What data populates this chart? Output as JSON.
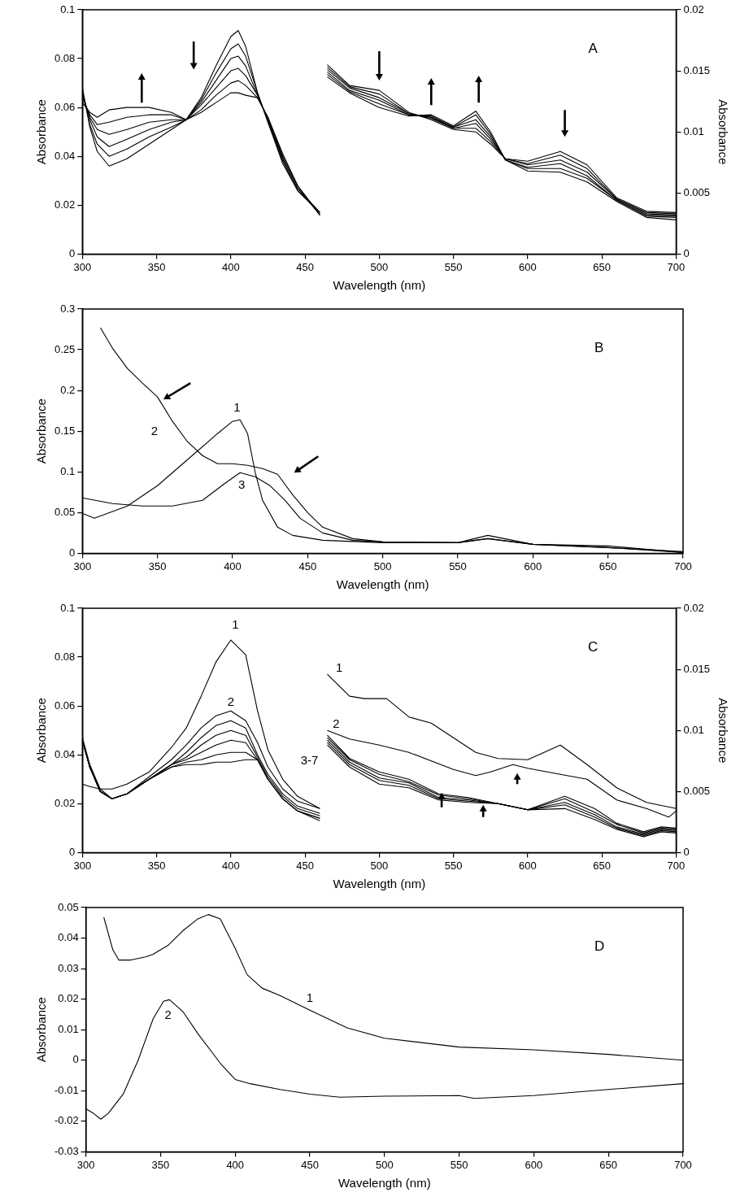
{
  "chart_data": [
    {
      "type": "line",
      "xlabel": "Wavelength (nm)",
      "ylabel": "Absorbance",
      "y2label": "Absorbance",
      "xlim": [
        300,
        700
      ],
      "xticks": [
        300,
        350,
        400,
        450,
        500,
        550,
        600,
        650,
        700
      ],
      "ylim": [
        0,
        0.1
      ],
      "yticks": [
        0,
        0.02,
        0.04,
        0.06,
        0.08,
        0.1
      ],
      "y2lim": [
        0,
        0.02
      ],
      "y2ticks": [
        0,
        0.005,
        0.01,
        0.015,
        0.02
      ],
      "legend": false,
      "annotations": [
        "A"
      ],
      "series": [
        {
          "color": "#000000",
          "x": [
            300,
            305,
            310,
            318,
            330,
            345,
            360,
            370,
            380,
            390,
            400,
            405,
            410,
            418,
            425,
            435,
            445,
            460
          ],
          "values": [
            0.068,
            0.052,
            0.042,
            0.036,
            0.039,
            0.045,
            0.051,
            0.055,
            0.064,
            0.077,
            0.089,
            0.0915,
            0.085,
            0.066,
            0.054,
            0.037,
            0.026,
            0.017
          ]
        },
        {
          "color": "#000000",
          "x": [
            300,
            305,
            310,
            318,
            330,
            345,
            360,
            370,
            380,
            390,
            400,
            405,
            410,
            418,
            425,
            435,
            445,
            460
          ],
          "values": [
            0.067,
            0.053,
            0.045,
            0.04,
            0.043,
            0.048,
            0.052,
            0.055,
            0.063,
            0.074,
            0.084,
            0.086,
            0.081,
            0.066,
            0.054,
            0.038,
            0.026,
            0.017
          ]
        },
        {
          "color": "#000000",
          "x": [
            300,
            305,
            310,
            318,
            330,
            345,
            360,
            370,
            380,
            390,
            400,
            405,
            410,
            418,
            425,
            435,
            445,
            460
          ],
          "values": [
            0.066,
            0.055,
            0.048,
            0.044,
            0.047,
            0.051,
            0.054,
            0.055,
            0.062,
            0.071,
            0.08,
            0.081,
            0.077,
            0.065,
            0.055,
            0.039,
            0.027,
            0.017
          ]
        },
        {
          "color": "#000000",
          "x": [
            300,
            305,
            310,
            318,
            330,
            345,
            360,
            370,
            380,
            390,
            400,
            405,
            410,
            418,
            425,
            435,
            445,
            460
          ],
          "values": [
            0.065,
            0.056,
            0.051,
            0.049,
            0.051,
            0.054,
            0.055,
            0.055,
            0.061,
            0.068,
            0.075,
            0.076,
            0.073,
            0.065,
            0.055,
            0.039,
            0.027,
            0.016
          ]
        },
        {
          "color": "#000000",
          "x": [
            300,
            305,
            310,
            318,
            330,
            345,
            360,
            370,
            380,
            390,
            400,
            405,
            410,
            418,
            425,
            435,
            445,
            460
          ],
          "values": [
            0.064,
            0.057,
            0.053,
            0.054,
            0.056,
            0.057,
            0.057,
            0.055,
            0.059,
            0.065,
            0.07,
            0.071,
            0.069,
            0.064,
            0.056,
            0.04,
            0.028,
            0.016
          ]
        },
        {
          "color": "#000000",
          "x": [
            300,
            305,
            310,
            318,
            330,
            345,
            360,
            370,
            380,
            390,
            400,
            405,
            410,
            418,
            425,
            435,
            445,
            460
          ],
          "values": [
            0.062,
            0.058,
            0.056,
            0.059,
            0.06,
            0.06,
            0.058,
            0.055,
            0.058,
            0.062,
            0.066,
            0.066,
            0.065,
            0.064,
            0.056,
            0.041,
            0.028,
            0.016
          ]
        },
        {
          "color": "#000000",
          "axis": "y2",
          "x": [
            465,
            480,
            500,
            520,
            535,
            550,
            565,
            575,
            585,
            600,
            622,
            640,
            660,
            680,
            700
          ],
          "values": [
            0.0155,
            0.0138,
            0.0134,
            0.0116,
            0.011,
            0.0102,
            0.01,
            0.009,
            0.0078,
            0.0076,
            0.0084,
            0.0073,
            0.0046,
            0.0035,
            0.0034
          ]
        },
        {
          "color": "#000000",
          "axis": "y2",
          "x": [
            465,
            480,
            500,
            520,
            535,
            550,
            565,
            575,
            585,
            600,
            622,
            640,
            660,
            680,
            700
          ],
          "values": [
            0.0153,
            0.0137,
            0.0131,
            0.0115,
            0.0111,
            0.0103,
            0.0103,
            0.0092,
            0.0078,
            0.0074,
            0.0081,
            0.007,
            0.0045,
            0.0034,
            0.0033
          ]
        },
        {
          "color": "#000000",
          "axis": "y2",
          "x": [
            465,
            480,
            500,
            520,
            535,
            550,
            565,
            575,
            585,
            600,
            622,
            640,
            660,
            680,
            700
          ],
          "values": [
            0.0151,
            0.0136,
            0.0128,
            0.0115,
            0.0112,
            0.0103,
            0.0107,
            0.0094,
            0.0078,
            0.0073,
            0.0077,
            0.0067,
            0.0045,
            0.0033,
            0.0032
          ]
        },
        {
          "color": "#000000",
          "axis": "y2",
          "x": [
            465,
            480,
            500,
            520,
            535,
            550,
            565,
            575,
            585,
            600,
            622,
            640,
            660,
            680,
            700
          ],
          "values": [
            0.0149,
            0.0134,
            0.0126,
            0.0114,
            0.0112,
            0.0104,
            0.011,
            0.0096,
            0.0077,
            0.0071,
            0.0074,
            0.0064,
            0.0044,
            0.0032,
            0.0031
          ]
        },
        {
          "color": "#000000",
          "axis": "y2",
          "x": [
            465,
            480,
            500,
            520,
            535,
            550,
            565,
            575,
            585,
            600,
            622,
            640,
            660,
            680,
            700
          ],
          "values": [
            0.0147,
            0.0133,
            0.0123,
            0.0114,
            0.0113,
            0.0104,
            0.0114,
            0.0098,
            0.0077,
            0.007,
            0.007,
            0.0062,
            0.0044,
            0.0031,
            0.003
          ]
        },
        {
          "color": "#000000",
          "axis": "y2",
          "x": [
            465,
            480,
            500,
            520,
            535,
            550,
            565,
            575,
            585,
            600,
            622,
            640,
            660,
            680,
            700
          ],
          "values": [
            0.0145,
            0.0132,
            0.012,
            0.0113,
            0.0114,
            0.0105,
            0.0117,
            0.01,
            0.0077,
            0.0068,
            0.0067,
            0.0059,
            0.0043,
            0.003,
            0.0028
          ]
        }
      ]
    },
    {
      "type": "line",
      "xlabel": "Wavelength (nm)",
      "ylabel": "Absorbance",
      "xlim": [
        300,
        700
      ],
      "xticks": [
        300,
        350,
        400,
        450,
        500,
        550,
        600,
        650,
        700
      ],
      "ylim": [
        0,
        0.3
      ],
      "yticks": [
        0,
        0.05,
        0.1,
        0.15,
        0.2,
        0.25,
        0.3
      ],
      "legend": false,
      "annotations": [
        "B",
        "1",
        "2",
        "3"
      ],
      "series": [
        {
          "color": "#000000",
          "x": [
            300,
            308,
            330,
            350,
            370,
            390,
            400,
            405,
            410,
            415,
            420,
            430,
            440,
            460,
            500,
            550,
            570,
            600,
            650,
            700
          ],
          "values": [
            0.049,
            0.043,
            0.058,
            0.083,
            0.115,
            0.147,
            0.162,
            0.164,
            0.147,
            0.1,
            0.065,
            0.032,
            0.022,
            0.016,
            0.013,
            0.013,
            0.018,
            0.011,
            0.009,
            0.001
          ]
        },
        {
          "color": "#000000",
          "x": [
            312,
            320,
            330,
            340,
            350,
            360,
            370,
            380,
            390,
            400,
            410,
            420,
            430,
            440,
            450,
            460,
            480,
            500,
            550,
            570,
            600,
            650,
            700
          ],
          "values": [
            0.277,
            0.252,
            0.227,
            0.209,
            0.192,
            0.162,
            0.137,
            0.12,
            0.11,
            0.11,
            0.108,
            0.104,
            0.097,
            0.072,
            0.05,
            0.032,
            0.018,
            0.014,
            0.013,
            0.022,
            0.011,
            0.007,
            0.002
          ]
        },
        {
          "color": "#000000",
          "x": [
            300,
            320,
            340,
            360,
            380,
            395,
            405,
            415,
            425,
            435,
            445,
            460,
            480,
            500,
            550,
            570,
            600,
            650,
            700
          ],
          "values": [
            0.068,
            0.061,
            0.058,
            0.058,
            0.065,
            0.086,
            0.099,
            0.094,
            0.083,
            0.065,
            0.043,
            0.025,
            0.016,
            0.014,
            0.013,
            0.018,
            0.011,
            0.007,
            0.001
          ]
        }
      ]
    },
    {
      "type": "line",
      "xlabel": "Wavelength (nm)",
      "ylabel": "Absorbance",
      "y2label": "Absorbance",
      "xlim": [
        300,
        700
      ],
      "xticks": [
        300,
        350,
        400,
        450,
        500,
        550,
        600,
        650,
        700
      ],
      "ylim": [
        0,
        0.1
      ],
      "yticks": [
        0,
        0.02,
        0.04,
        0.06,
        0.08,
        0.1
      ],
      "y2lim": [
        0,
        0.02
      ],
      "y2ticks": [
        0,
        0.005,
        0.01,
        0.015,
        0.02
      ],
      "legend": false,
      "annotations": [
        "C",
        "1",
        "2",
        "1",
        "2",
        "3-7"
      ],
      "series": [
        {
          "color": "#000000",
          "x": [
            300,
            305,
            312,
            320,
            330,
            345,
            360,
            370,
            380,
            390,
            400,
            410,
            418,
            425,
            435,
            445,
            460
          ],
          "values": [
            0.028,
            0.027,
            0.026,
            0.026,
            0.028,
            0.033,
            0.043,
            0.051,
            0.064,
            0.078,
            0.087,
            0.081,
            0.058,
            0.042,
            0.03,
            0.023,
            0.018
          ]
        },
        {
          "color": "#000000",
          "x": [
            300,
            305,
            312,
            320,
            330,
            345,
            360,
            370,
            380,
            390,
            400,
            410,
            418,
            425,
            435,
            445,
            460
          ],
          "values": [
            0.047,
            0.036,
            0.026,
            0.022,
            0.024,
            0.031,
            0.038,
            0.044,
            0.051,
            0.056,
            0.058,
            0.054,
            0.045,
            0.035,
            0.026,
            0.021,
            0.018
          ]
        },
        {
          "color": "#000000",
          "x": [
            300,
            305,
            312,
            320,
            330,
            345,
            360,
            370,
            380,
            390,
            400,
            410,
            418,
            425,
            435,
            445,
            460
          ],
          "values": [
            0.046,
            0.035,
            0.025,
            0.022,
            0.024,
            0.03,
            0.036,
            0.041,
            0.047,
            0.052,
            0.054,
            0.051,
            0.04,
            0.032,
            0.024,
            0.019,
            0.016
          ]
        },
        {
          "color": "#000000",
          "x": [
            300,
            305,
            312,
            320,
            330,
            345,
            360,
            370,
            380,
            390,
            400,
            410,
            418,
            425,
            435,
            445,
            460
          ],
          "values": [
            0.046,
            0.035,
            0.025,
            0.022,
            0.024,
            0.03,
            0.036,
            0.039,
            0.044,
            0.048,
            0.05,
            0.048,
            0.039,
            0.031,
            0.023,
            0.018,
            0.015
          ]
        },
        {
          "color": "#000000",
          "x": [
            300,
            305,
            312,
            320,
            330,
            345,
            360,
            370,
            380,
            390,
            400,
            410,
            418,
            425,
            435,
            445,
            460
          ],
          "values": [
            0.046,
            0.035,
            0.025,
            0.022,
            0.024,
            0.03,
            0.036,
            0.038,
            0.041,
            0.044,
            0.046,
            0.045,
            0.038,
            0.03,
            0.022,
            0.017,
            0.014
          ]
        },
        {
          "color": "#000000",
          "x": [
            300,
            305,
            312,
            320,
            330,
            345,
            360,
            370,
            380,
            390,
            400,
            410,
            418,
            425,
            435,
            445,
            460
          ],
          "values": [
            0.046,
            0.035,
            0.025,
            0.022,
            0.024,
            0.03,
            0.035,
            0.037,
            0.038,
            0.04,
            0.041,
            0.041,
            0.038,
            0.03,
            0.022,
            0.017,
            0.014
          ]
        },
        {
          "color": "#000000",
          "x": [
            300,
            305,
            312,
            320,
            330,
            345,
            360,
            370,
            380,
            390,
            400,
            410,
            418,
            425,
            435,
            445,
            460
          ],
          "values": [
            0.046,
            0.035,
            0.025,
            0.022,
            0.024,
            0.03,
            0.035,
            0.036,
            0.036,
            0.037,
            0.037,
            0.038,
            0.038,
            0.03,
            0.022,
            0.017,
            0.013
          ]
        },
        {
          "color": "#000000",
          "axis": "y2",
          "x": [
            465,
            480,
            490,
            505,
            520,
            535,
            550,
            565,
            580,
            600,
            622,
            640,
            660,
            680,
            700
          ],
          "values": [
            0.0146,
            0.0128,
            0.0126,
            0.0126,
            0.0111,
            0.0106,
            0.0094,
            0.0082,
            0.0077,
            0.0076,
            0.0088,
            0.0072,
            0.0053,
            0.0041,
            0.0036
          ]
        },
        {
          "color": "#000000",
          "axis": "y2",
          "x": [
            465,
            480,
            500,
            520,
            550,
            565,
            575,
            590,
            600,
            622,
            640,
            660,
            680,
            695,
            700
          ],
          "values": [
            0.01,
            0.0093,
            0.0088,
            0.0082,
            0.0068,
            0.0063,
            0.0066,
            0.0072,
            0.0069,
            0.0064,
            0.006,
            0.0043,
            0.0036,
            0.0029,
            0.0034
          ]
        },
        {
          "color": "#000000",
          "axis": "y2",
          "x": [
            465,
            480,
            500,
            520,
            540,
            560,
            580,
            600,
            625,
            645,
            660,
            678,
            690,
            700
          ],
          "values": [
            0.0088,
            0.007,
            0.0056,
            0.0053,
            0.0043,
            0.0041,
            0.004,
            0.0035,
            0.0036,
            0.0027,
            0.0019,
            0.0013,
            0.0017,
            0.0016
          ]
        },
        {
          "color": "#000000",
          "axis": "y2",
          "x": [
            465,
            480,
            500,
            520,
            540,
            560,
            580,
            600,
            625,
            645,
            660,
            678,
            690,
            700
          ],
          "values": [
            0.009,
            0.0072,
            0.0059,
            0.0055,
            0.0044,
            0.0042,
            0.004,
            0.0035,
            0.0039,
            0.0029,
            0.002,
            0.0014,
            0.0018,
            0.0017
          ]
        },
        {
          "color": "#000000",
          "axis": "y2",
          "x": [
            465,
            480,
            500,
            520,
            540,
            560,
            580,
            600,
            625,
            645,
            660,
            678,
            690,
            700
          ],
          "values": [
            0.0092,
            0.0074,
            0.0061,
            0.0057,
            0.0045,
            0.0043,
            0.004,
            0.0035,
            0.0041,
            0.0031,
            0.0021,
            0.0015,
            0.0019,
            0.0018
          ]
        },
        {
          "color": "#000000",
          "axis": "y2",
          "x": [
            465,
            480,
            500,
            520,
            540,
            560,
            580,
            600,
            625,
            645,
            660,
            678,
            690,
            700
          ],
          "values": [
            0.0094,
            0.0076,
            0.0064,
            0.0058,
            0.0047,
            0.0044,
            0.004,
            0.0035,
            0.0044,
            0.0033,
            0.0023,
            0.0016,
            0.002,
            0.0019
          ]
        },
        {
          "color": "#000000",
          "axis": "y2",
          "x": [
            465,
            480,
            500,
            520,
            540,
            560,
            580,
            600,
            625,
            645,
            660,
            678,
            690,
            700
          ],
          "values": [
            0.0096,
            0.0077,
            0.0066,
            0.006,
            0.0048,
            0.0045,
            0.004,
            0.0035,
            0.0046,
            0.0036,
            0.0024,
            0.0017,
            0.0021,
            0.002
          ]
        }
      ]
    },
    {
      "type": "line",
      "xlabel": "Wavelength (nm)",
      "ylabel": "Absorbance",
      "xlim": [
        300,
        700
      ],
      "xticks": [
        300,
        350,
        400,
        450,
        500,
        550,
        600,
        650,
        700
      ],
      "ylim": [
        -0.03,
        0.05
      ],
      "yticks": [
        -0.03,
        -0.02,
        -0.01,
        0,
        0.01,
        0.02,
        0.03,
        0.04,
        0.05
      ],
      "legend": false,
      "annotations": [
        "D",
        "1",
        "2"
      ],
      "series": [
        {
          "color": "#000000",
          "x": [
            312,
            318,
            322,
            330,
            340,
            345,
            355,
            365,
            375,
            382,
            390,
            400,
            408,
            418,
            430,
            450,
            475,
            500,
            550,
            600,
            650,
            700
          ],
          "values": [
            0.0468,
            0.0362,
            0.0328,
            0.0328,
            0.0338,
            0.0347,
            0.0376,
            0.0424,
            0.0463,
            0.0477,
            0.0463,
            0.0366,
            0.028,
            0.0236,
            0.0212,
            0.0164,
            0.0106,
            0.0072,
            0.0043,
            0.0034,
            0.0019,
            0
          ]
        },
        {
          "color": "#000000",
          "x": [
            300,
            305,
            310,
            315,
            325,
            335,
            345,
            352,
            356,
            365,
            375,
            390,
            400,
            410,
            430,
            450,
            470,
            500,
            550,
            560,
            600,
            650,
            700
          ],
          "values": [
            -0.0159,
            -0.0174,
            -0.0193,
            -0.0174,
            -0.0111,
            0,
            0.0135,
            0.0193,
            0.0198,
            0.0159,
            0.0087,
            -0.001,
            -0.0063,
            -0.0077,
            -0.0096,
            -0.0111,
            -0.0121,
            -0.0118,
            -0.0116,
            -0.0125,
            -0.0116,
            -0.0096,
            -0.0077
          ]
        }
      ]
    }
  ]
}
